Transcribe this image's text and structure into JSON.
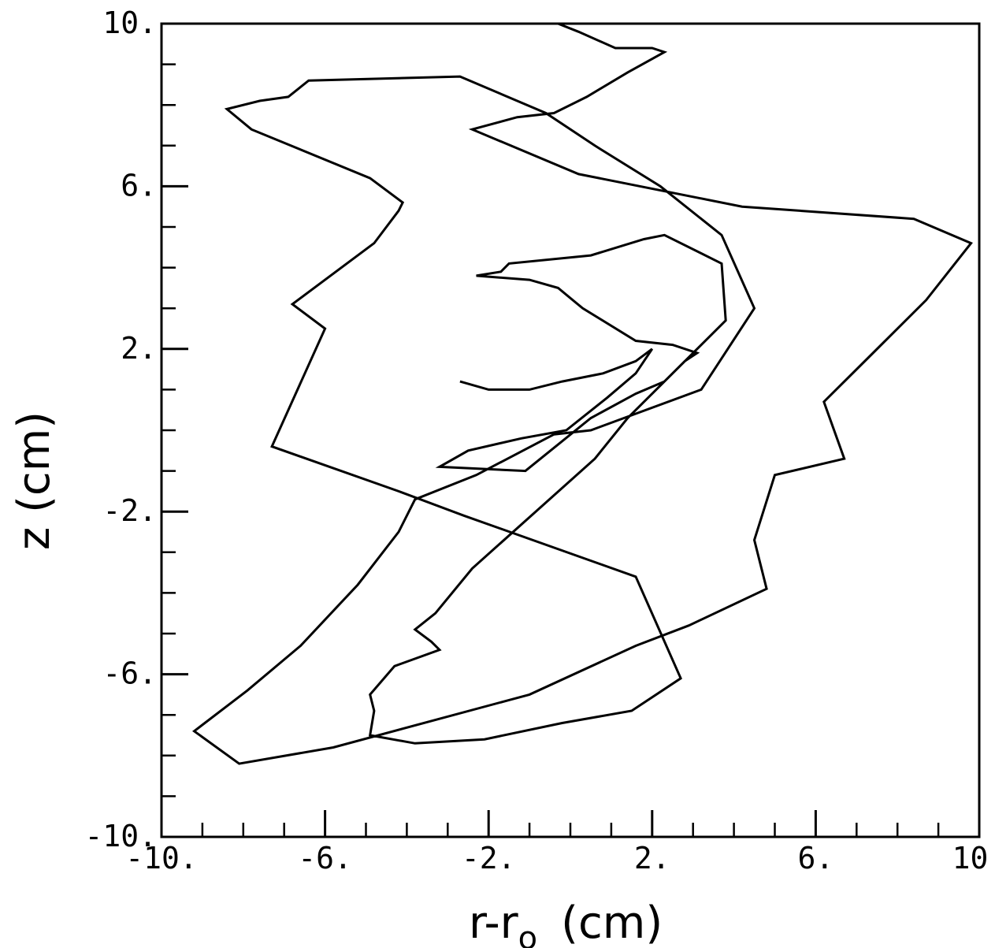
{
  "chart_data": {
    "type": "line",
    "title": "",
    "xlabel": "r-r",
    "xlabel_sub": "o",
    "xlabel_unit": "(cm)",
    "ylabel": "z   (cm)",
    "xlim": [
      -10,
      10
    ],
    "ylim": [
      -10,
      10
    ],
    "grid": false,
    "x_tick_labels": [
      "-10.",
      "-6.",
      "-2.",
      "2.",
      "6.",
      "10."
    ],
    "x_tick_values": [
      -10,
      -6,
      -2,
      2,
      6,
      10
    ],
    "y_tick_labels": [
      "10.",
      "6.",
      "2.",
      "-2.",
      "-6.",
      "-10."
    ],
    "y_tick_values": [
      10,
      6,
      2,
      -2,
      -6,
      -10
    ],
    "series": [
      {
        "color": "#000000",
        "x": [
          -2.7,
          -2.0,
          -1.0,
          -0.2,
          0.8,
          1.6,
          2.0,
          1.6,
          0.9,
          -0.1,
          -1.2,
          -2.5,
          -3.2,
          -1.1,
          0.5,
          1.6,
          2.3,
          2.8,
          3.1,
          2.5,
          1.6,
          0.3,
          -0.3,
          -1.0,
          -2.3,
          -1.7,
          -1.6,
          -1.5,
          0.5,
          1.8,
          2.3,
          3.7,
          3.8,
          2.4,
          1.4,
          0.6,
          -2.4,
          -3.3,
          -3.8,
          -3.4,
          -3.2,
          -4.3,
          -4.9,
          -4.8,
          -4.9,
          -3.8,
          -2.1,
          -0.2,
          1.5,
          2.7,
          1.6,
          -2.6,
          -4.2,
          -7.3,
          -6.0,
          -6.8,
          -4.8,
          -4.2,
          -4.1,
          -4.9,
          -7.8,
          -8.4,
          -7.6,
          -6.9,
          -6.4,
          -2.7,
          -0.6,
          0.6,
          2.2,
          3.7,
          4.5,
          3.2,
          0.5,
          -0.4,
          -2.3,
          -3.8,
          -4.2,
          -5.2,
          -6.6,
          -7.9,
          -9.2,
          -8.1,
          -5.8,
          -1.0,
          1.6,
          2.9,
          4.8,
          4.5,
          5.0,
          6.7,
          6.2,
          7.4,
          8.7,
          9.8,
          8.4,
          4.2,
          0.2,
          -2.4,
          -1.3,
          -0.4,
          0.4,
          1.4,
          2.3,
          2.0,
          1.1,
          0.2,
          -0.3,
          -0.2,
          0.2,
          1.1,
          1.0,
          0.4,
          0.8
        ],
        "y": [
          1.2,
          1.0,
          1.0,
          1.2,
          1.4,
          1.7,
          2.0,
          1.4,
          0.8,
          0.0,
          -0.2,
          -0.5,
          -0.9,
          -1.0,
          0.3,
          0.9,
          1.2,
          1.7,
          1.9,
          2.1,
          2.2,
          3.0,
          3.5,
          3.7,
          3.8,
          3.9,
          4.0,
          4.1,
          4.3,
          4.7,
          4.8,
          4.1,
          2.7,
          1.3,
          0.3,
          -0.7,
          -3.4,
          -4.5,
          -4.9,
          -5.2,
          -5.4,
          -5.8,
          -6.5,
          -6.9,
          -7.5,
          -7.7,
          -7.6,
          -7.2,
          -6.9,
          -6.1,
          -3.6,
          -2.1,
          -1.5,
          -0.4,
          2.5,
          3.1,
          4.6,
          5.4,
          5.6,
          6.2,
          7.4,
          7.9,
          8.1,
          8.2,
          8.6,
          8.7,
          7.8,
          7.0,
          6.0,
          4.8,
          3.0,
          1.0,
          0.0,
          -0.1,
          -1.1,
          -1.7,
          -2.5,
          -3.8,
          -5.3,
          -6.4,
          -7.4,
          -8.2,
          -7.8,
          -6.5,
          -5.3,
          -4.8,
          -3.9,
          -2.7,
          -1.1,
          -0.7,
          0.7,
          1.9,
          3.2,
          4.6,
          5.2,
          5.5,
          6.3,
          7.4,
          7.7,
          7.8,
          8.2,
          8.8,
          9.3,
          9.4,
          9.4,
          9.8,
          10.0,
          10.0,
          10.0,
          10.0,
          10.0,
          10.0,
          10.0
        ]
      }
    ]
  }
}
